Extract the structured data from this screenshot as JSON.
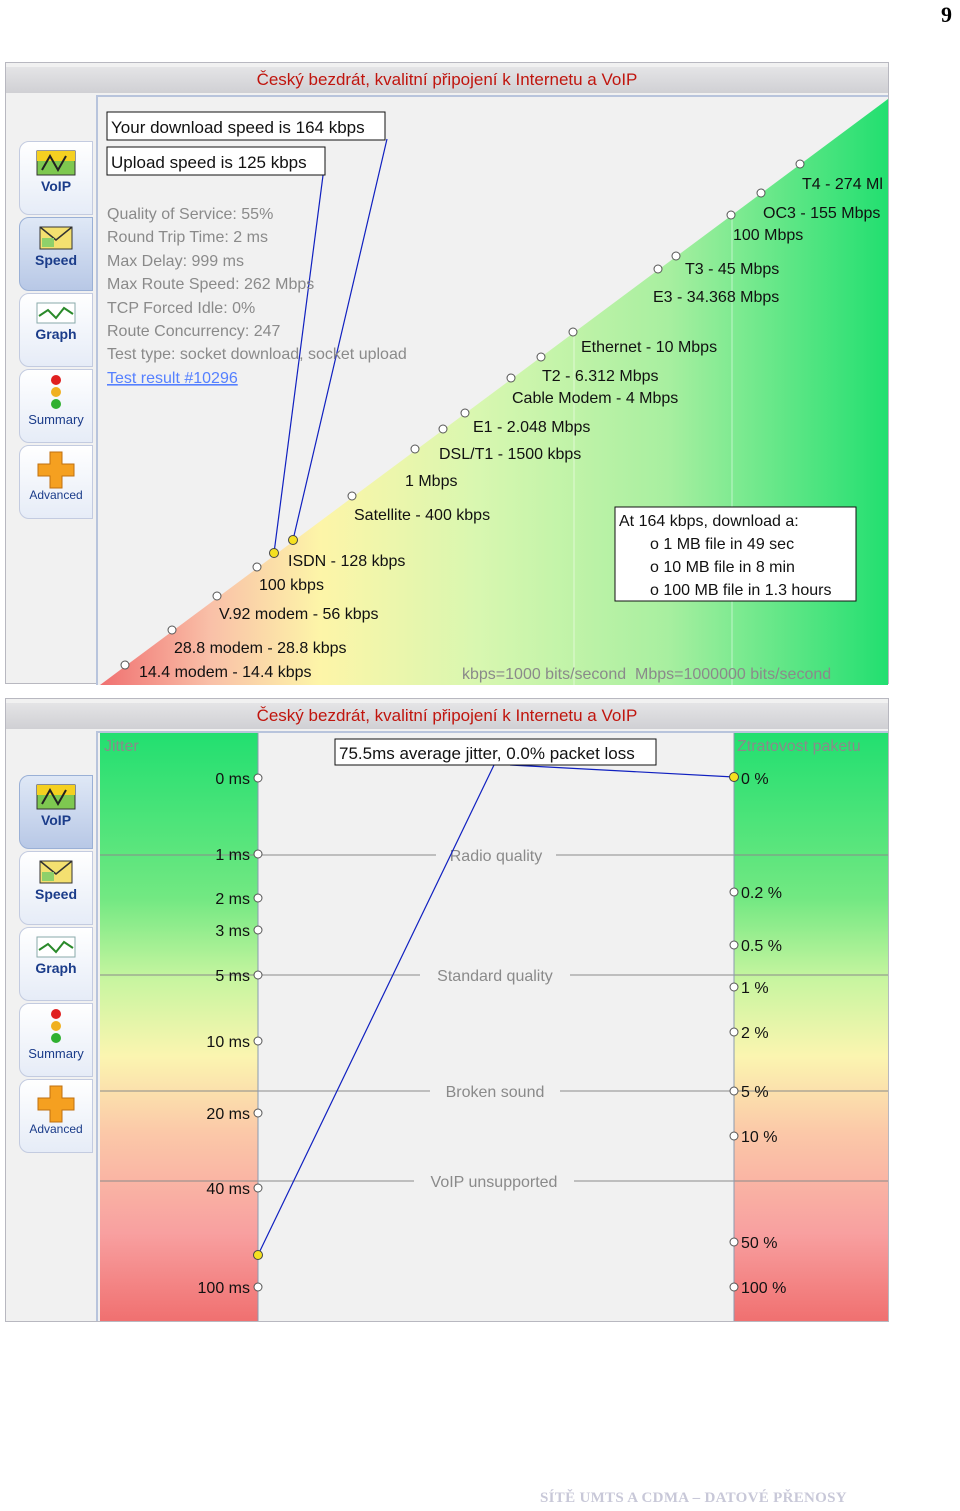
{
  "page_number": "9",
  "footer": "SÍTĚ UMTS A CDMA – DATOVÉ PŘENOSY",
  "speed_panel": {
    "title": "Český bezdrát, kvalitní připojení k Internetu a VoIP",
    "tabs": [
      {
        "label": "VoIP",
        "icon": "voip-icon",
        "active": false
      },
      {
        "label": "Speed",
        "icon": "envelope-icon",
        "active": true
      },
      {
        "label": "Graph",
        "icon": "graph-icon",
        "active": false
      },
      {
        "label": "Summary",
        "icon": "traffic-light-icon",
        "active": false
      },
      {
        "label": "Advanced",
        "icon": "plus-icon",
        "active": false
      }
    ],
    "download_box": "Your download speed is 164 kbps",
    "upload_box": "Upload speed is 125 kbps",
    "stats": [
      "Quality of Service: 55%",
      "Round Trip Time: 2 ms",
      "Max Delay: 999 ms",
      "Max Route Speed: 262 Mbps",
      "TCP Forced Idle: 0%",
      "Route Concurrency: 247",
      "Test type: socket download, socket upload"
    ],
    "test_link": "Test result #10296",
    "speed_labels": [
      "T4 - 274 Ml",
      "OC3 - 155 Mbps",
      "100 Mbps",
      "T3 - 45 Mbps",
      "E3 - 34.368 Mbps",
      "Ethernet - 10 Mbps",
      "T2 - 6.312 Mbps",
      "Cable Modem - 4 Mbps",
      "E1 - 2.048 Mbps",
      "DSL/T1 - 1500 kbps",
      "1 Mbps",
      "Satellite - 400 kbps",
      "ISDN - 128 kbps",
      "100 kbps",
      "V.92 modem - 56 kbps",
      "28.8 modem - 28.8 kbps",
      "14.4 modem - 14.4 kbps"
    ],
    "download_times": {
      "title": "At 164 kbps, download a:",
      "lines": [
        "o 1 MB file in 49 sec",
        "o 10 MB file in 8 min",
        "o 100 MB file in 1.3 hours"
      ]
    },
    "units_note": "kbps=1000 bits/second  Mbps=1000000 bits/second"
  },
  "voip_panel": {
    "title": "Český bezdrát, kvalitní připojení k Internetu a VoIP",
    "tabs": [
      {
        "label": "VoIP",
        "icon": "voip-icon",
        "active": true
      },
      {
        "label": "Speed",
        "icon": "envelope-icon",
        "active": false
      },
      {
        "label": "Graph",
        "icon": "graph-icon",
        "active": false
      },
      {
        "label": "Summary",
        "icon": "traffic-light-icon",
        "active": false
      },
      {
        "label": "Advanced",
        "icon": "plus-icon",
        "active": false
      }
    ],
    "jitter_title": "Jitter",
    "loss_title": "Ztratovost paketu",
    "summary_box": "75.5ms average jitter, 0.0% packet loss",
    "jitter_ticks": [
      "0 ms",
      "1 ms",
      "2 ms",
      "3 ms",
      "5 ms",
      "10 ms",
      "20 ms",
      "40 ms",
      "100 ms"
    ],
    "loss_ticks": [
      "0 %",
      "0.2 %",
      "0.5 %",
      "1 %",
      "2 %",
      "5 %",
      "10 %",
      "50 %",
      "100 %"
    ],
    "quality_bands": [
      "Radio quality",
      "Standard quality",
      "Broken sound",
      "VoIP unsupported"
    ],
    "measured_jitter_ms": 75.5,
    "measured_loss_pct": 0.0
  }
}
